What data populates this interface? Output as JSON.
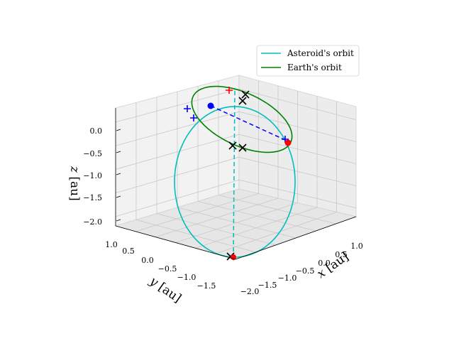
{
  "chart_data": {
    "type": "3d-line",
    "xlabel": "$x$ [au]",
    "ylabel": "$y$ [au]",
    "zlabel": "$z$ [au]",
    "xlim": [
      -2.0,
      1.0
    ],
    "ylim": [
      -1.5,
      1.0
    ],
    "zlim": [
      -2.0,
      0.0
    ],
    "xticks": [
      "−2.0",
      "−1.5",
      "−1.0",
      "−0.5",
      "0.0",
      "0.5",
      "1.0"
    ],
    "yticks": [
      "1.0",
      "0.5",
      "0.0",
      "−0.5",
      "−1.0",
      "−1.5"
    ],
    "zticks": [
      "0.0",
      "−0.5",
      "−1.0",
      "−1.5",
      "−2.0"
    ],
    "grid": true,
    "legend_position": "upper right",
    "series": [
      {
        "name": "Asteroid's orbit",
        "color": "#00bfbf",
        "style": "solid",
        "description": "ellipse centred near x=-0.5, y=-0.5, z=-1.1, inclined almost vertically"
      },
      {
        "name": "Earth's orbit",
        "color": "#008000",
        "style": "solid",
        "description": "unit circle in the z=0 plane"
      }
    ],
    "points": [
      {
        "label": "Earth position",
        "color": "#0000ff",
        "marker": "circle",
        "x": -0.2,
        "y": 0.9,
        "z": 0.0
      },
      {
        "label": "Asteroid position",
        "color": "#ff0000",
        "marker": "circle",
        "x": 0.6,
        "y": -0.6,
        "z": -0.35
      },
      {
        "label": "closest-approach link",
        "color": "#0000ff",
        "style": "dashed"
      },
      {
        "label": "asteroid projection",
        "color": "#00bfbf",
        "style": "dashed"
      }
    ]
  }
}
